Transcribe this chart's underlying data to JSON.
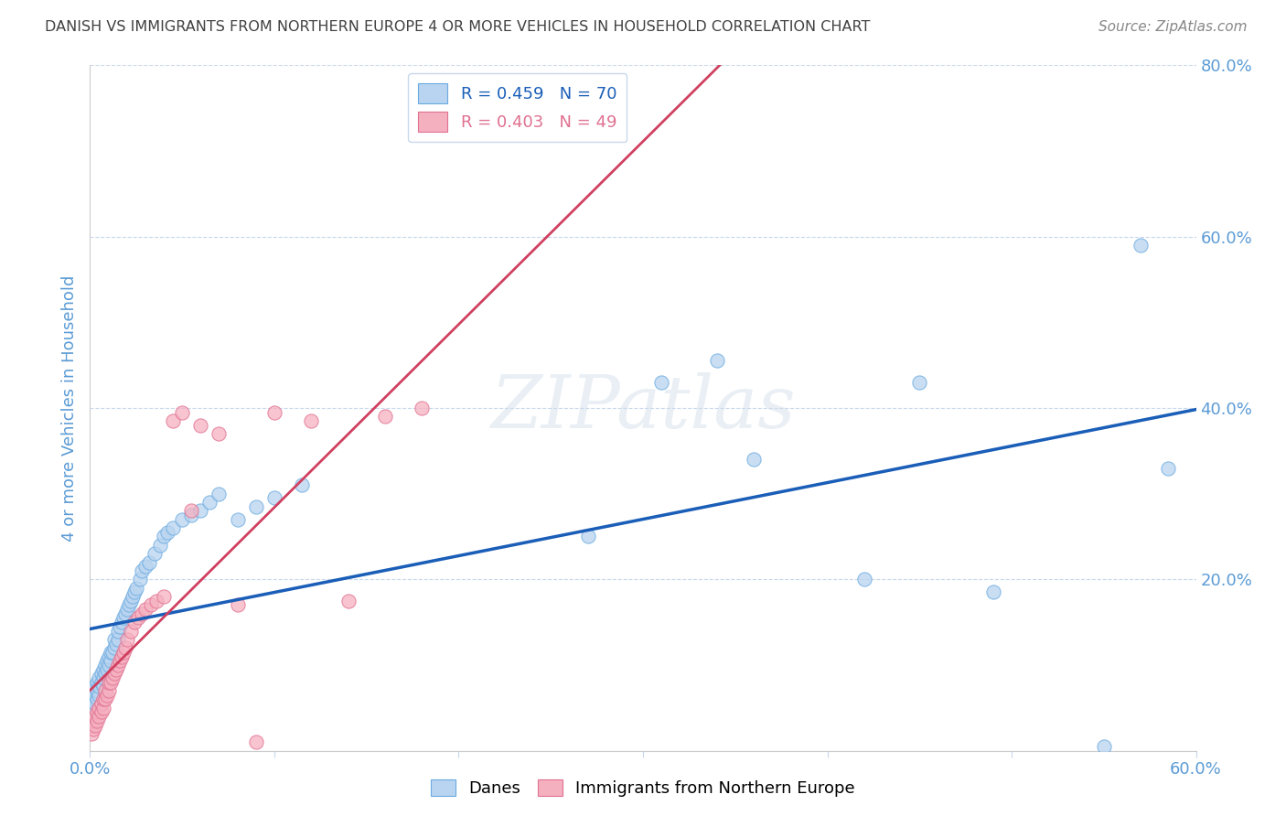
{
  "title": "DANISH VS IMMIGRANTS FROM NORTHERN EUROPE 4 OR MORE VEHICLES IN HOUSEHOLD CORRELATION CHART",
  "source": "Source: ZipAtlas.com",
  "ylabel_text": "4 or more Vehicles in Household",
  "xlim": [
    0.0,
    0.6
  ],
  "ylim": [
    0.0,
    0.8
  ],
  "xtick_positions": [
    0.0,
    0.1,
    0.2,
    0.3,
    0.4,
    0.5,
    0.6
  ],
  "ytick_positions": [
    0.0,
    0.2,
    0.4,
    0.6,
    0.8
  ],
  "xtick_labels_show": [
    "0.0%",
    "",
    "",
    "",
    "",
    "",
    "60.0%"
  ],
  "ytick_labels_show": [
    "",
    "20.0%",
    "40.0%",
    "60.0%",
    "80.0%"
  ],
  "danes_color": "#b8d4f0",
  "danes_edge_color": "#6aaae0",
  "immigrants_color": "#f5b0c0",
  "immigrants_edge_color": "#e07090",
  "danes_line_color": "#1a5eb8",
  "immigrants_line_color": "#d04060",
  "legend_line1": "R = 0.459   N = 70",
  "legend_line2": "R = 0.403   N = 49",
  "tick_color": "#5b9bd5",
  "grid_color": "#c8d8ec",
  "background_color": "#ffffff",
  "watermark": "ZIPatlas",
  "danes_x": [
    0.001,
    0.001,
    0.002,
    0.002,
    0.003,
    0.003,
    0.003,
    0.004,
    0.004,
    0.004,
    0.005,
    0.005,
    0.005,
    0.006,
    0.006,
    0.007,
    0.007,
    0.007,
    0.008,
    0.008,
    0.009,
    0.009,
    0.01,
    0.01,
    0.011,
    0.011,
    0.012,
    0.013,
    0.013,
    0.014,
    0.015,
    0.015,
    0.016,
    0.017,
    0.018,
    0.019,
    0.02,
    0.021,
    0.022,
    0.023,
    0.024,
    0.025,
    0.027,
    0.028,
    0.03,
    0.032,
    0.035,
    0.038,
    0.04,
    0.042,
    0.045,
    0.05,
    0.055,
    0.06,
    0.065,
    0.07,
    0.08,
    0.09,
    0.1,
    0.115,
    0.27,
    0.31,
    0.34,
    0.36,
    0.42,
    0.45,
    0.49,
    0.55,
    0.57,
    0.585
  ],
  "danes_y": [
    0.05,
    0.06,
    0.06,
    0.07,
    0.055,
    0.065,
    0.075,
    0.06,
    0.07,
    0.08,
    0.065,
    0.075,
    0.085,
    0.08,
    0.09,
    0.075,
    0.085,
    0.095,
    0.09,
    0.1,
    0.095,
    0.105,
    0.1,
    0.11,
    0.105,
    0.115,
    0.115,
    0.12,
    0.13,
    0.125,
    0.13,
    0.14,
    0.145,
    0.15,
    0.155,
    0.16,
    0.165,
    0.17,
    0.175,
    0.18,
    0.185,
    0.19,
    0.2,
    0.21,
    0.215,
    0.22,
    0.23,
    0.24,
    0.25,
    0.255,
    0.26,
    0.27,
    0.275,
    0.28,
    0.29,
    0.3,
    0.27,
    0.285,
    0.295,
    0.31,
    0.25,
    0.43,
    0.455,
    0.34,
    0.2,
    0.43,
    0.185,
    0.005,
    0.59,
    0.33
  ],
  "immigrants_x": [
    0.001,
    0.001,
    0.002,
    0.002,
    0.003,
    0.003,
    0.004,
    0.004,
    0.005,
    0.005,
    0.006,
    0.006,
    0.007,
    0.007,
    0.008,
    0.008,
    0.009,
    0.01,
    0.01,
    0.011,
    0.012,
    0.013,
    0.014,
    0.015,
    0.016,
    0.017,
    0.018,
    0.019,
    0.02,
    0.022,
    0.024,
    0.026,
    0.028,
    0.03,
    0.033,
    0.036,
    0.04,
    0.045,
    0.05,
    0.055,
    0.06,
    0.07,
    0.08,
    0.09,
    0.1,
    0.12,
    0.14,
    0.16,
    0.18
  ],
  "immigrants_y": [
    0.02,
    0.03,
    0.025,
    0.035,
    0.03,
    0.04,
    0.035,
    0.045,
    0.04,
    0.05,
    0.045,
    0.055,
    0.05,
    0.06,
    0.06,
    0.07,
    0.065,
    0.07,
    0.08,
    0.08,
    0.085,
    0.09,
    0.095,
    0.1,
    0.105,
    0.11,
    0.115,
    0.12,
    0.13,
    0.14,
    0.15,
    0.155,
    0.16,
    0.165,
    0.17,
    0.175,
    0.18,
    0.385,
    0.395,
    0.28,
    0.38,
    0.37,
    0.17,
    0.01,
    0.395,
    0.385,
    0.175,
    0.39,
    0.4
  ]
}
